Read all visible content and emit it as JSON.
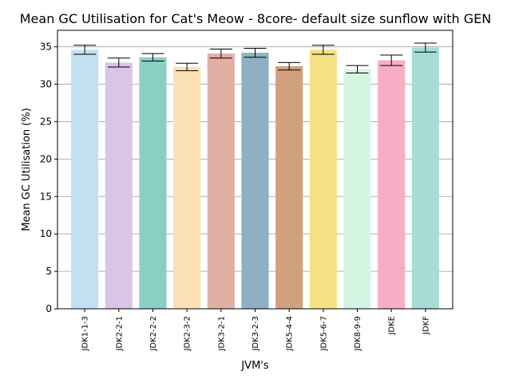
{
  "chart_data": {
    "type": "bar",
    "title": "Mean GC Utilisation for Cat's Meow - 8core- default size sunflow with GEN",
    "xlabel": "JVM's",
    "ylabel": "Mean GC Utilisation (%)",
    "ylim": [
      0,
      37.2
    ],
    "yticks": [
      0,
      5,
      10,
      15,
      20,
      25,
      30,
      35
    ],
    "grid": "horizontal",
    "categories": [
      "JDK1-1-3",
      "JDK2-2-1",
      "JDK2-2-2",
      "JDK2-3-2",
      "JDK3-2-1",
      "JDK3-2-3",
      "JDK5-4-4",
      "JDK5-6-7",
      "JDK8-9-9",
      "JDKE",
      "JDKF"
    ],
    "values": [
      34.6,
      32.9,
      33.6,
      32.3,
      34.1,
      34.2,
      32.4,
      34.6,
      32.0,
      33.2,
      34.9
    ],
    "errors": [
      0.6,
      0.6,
      0.5,
      0.5,
      0.6,
      0.6,
      0.5,
      0.6,
      0.5,
      0.7,
      0.6
    ],
    "colors": [
      "#c2e0f2",
      "#dac5e6",
      "#8ad0c2",
      "#fbe0b4",
      "#e3aea6",
      "#8fb0c4",
      "#d3a07e",
      "#f5e086",
      "#d5f5e3",
      "#f7aec5",
      "#a6ddd7"
    ]
  }
}
